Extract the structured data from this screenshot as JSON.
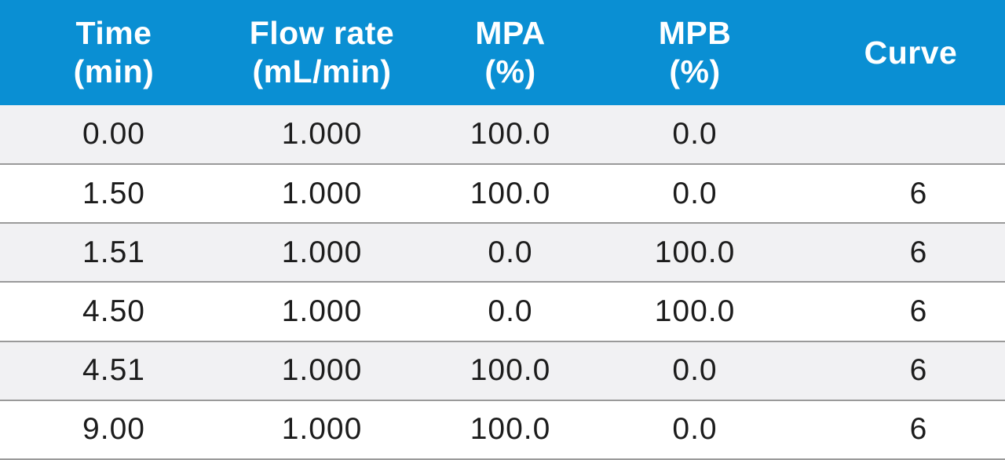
{
  "table": {
    "headers": [
      {
        "line1": "Time",
        "line2": "(min)"
      },
      {
        "line1": "Flow rate",
        "line2": "(mL/min)"
      },
      {
        "line1": "MPA",
        "line2": "(%)"
      },
      {
        "line1": "MPB",
        "line2": "(%)"
      },
      {
        "line1": "Curve",
        "line2": ""
      }
    ],
    "rows": [
      [
        "0.00",
        "1.000",
        "100.0",
        "0.0",
        ""
      ],
      [
        "1.50",
        "1.000",
        "100.0",
        "0.0",
        "6"
      ],
      [
        "1.51",
        "1.000",
        "0.0",
        "100.0",
        "6"
      ],
      [
        "4.50",
        "1.000",
        "0.0",
        "100.0",
        "6"
      ],
      [
        "4.51",
        "1.000",
        "100.0",
        "0.0",
        "6"
      ],
      [
        "9.00",
        "1.000",
        "100.0",
        "0.0",
        "6"
      ]
    ]
  },
  "colors": {
    "header_background": "#0a8fd3",
    "header_text": "#ffffff",
    "row_shaded": "#f1f1f3",
    "row_plain": "#ffffff",
    "row_divider": "#9a9a9a"
  }
}
